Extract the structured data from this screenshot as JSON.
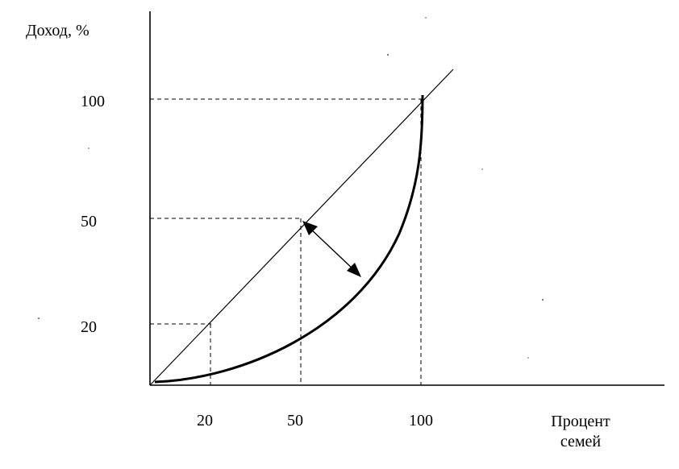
{
  "axis": {
    "y_label": "Доход, %",
    "x_label_line1": "Процент",
    "x_label_line2": "семей"
  },
  "y_ticks": [
    "100",
    "50",
    "20"
  ],
  "x_ticks": [
    "20",
    "50",
    "100"
  ],
  "curves": {
    "equality_line": {
      "from": [
        0,
        0
      ],
      "to": [
        100,
        100
      ]
    },
    "lorenz_curve": {
      "start": [
        0,
        0
      ],
      "end": [
        100,
        100
      ]
    }
  },
  "guides": [
    {
      "x": 20,
      "y": 20
    },
    {
      "x": 50,
      "y": 50
    },
    {
      "x": 100,
      "y": 100
    }
  ]
}
